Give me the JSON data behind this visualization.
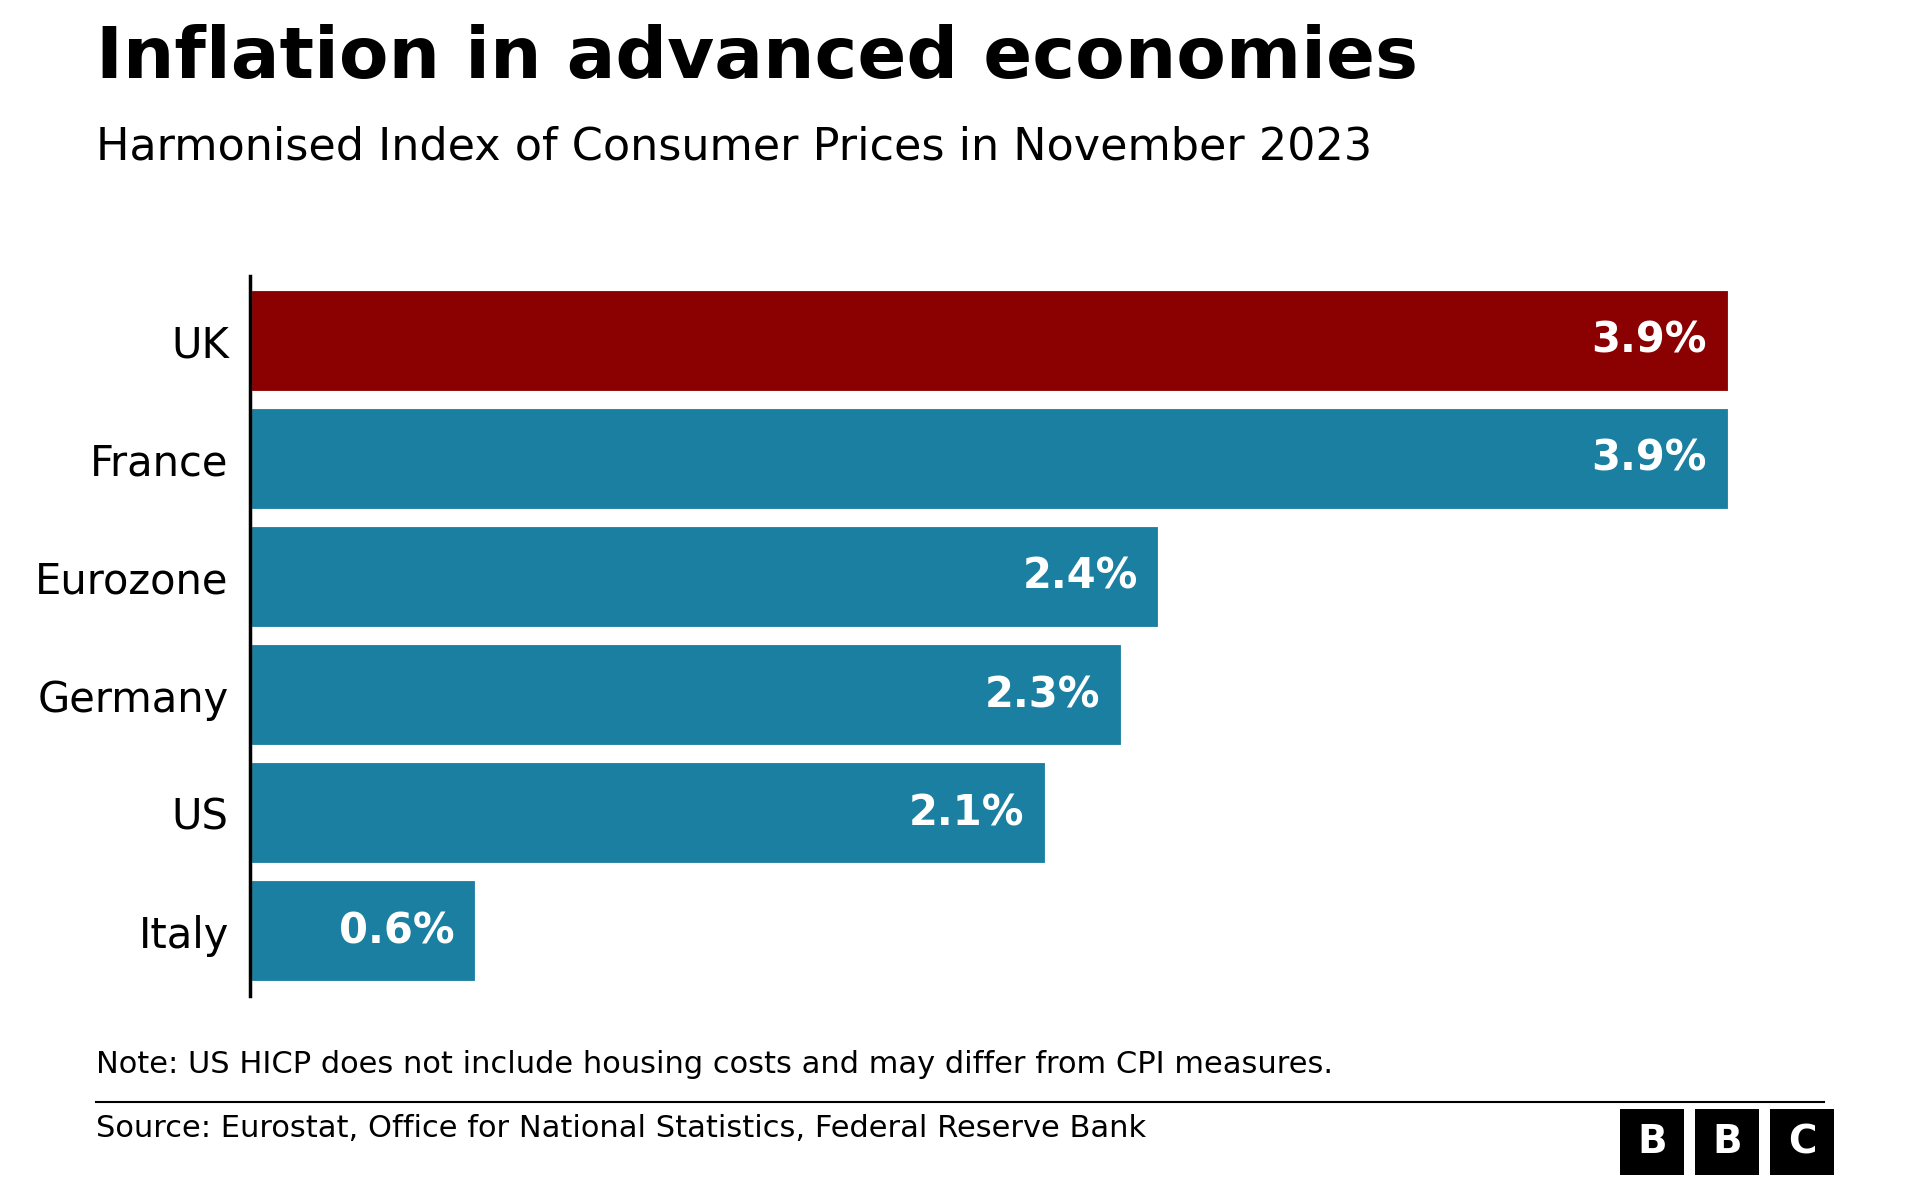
{
  "title": "Inflation in advanced economies",
  "subtitle": "Harmonised Index of Consumer Prices in November 2023",
  "categories": [
    "UK",
    "France",
    "Eurozone",
    "Germany",
    "US",
    "Italy"
  ],
  "values": [
    3.9,
    3.9,
    2.4,
    2.3,
    2.1,
    0.6
  ],
  "labels": [
    "3.9%",
    "3.9%",
    "2.4%",
    "2.3%",
    "2.1%",
    "0.6%"
  ],
  "bar_colors": [
    "#8B0000",
    "#1A7FA0",
    "#1A7FA0",
    "#1A7FA0",
    "#1A7FA0",
    "#1A7FA0"
  ],
  "background_color": "#FFFFFF",
  "title_fontsize": 52,
  "subtitle_fontsize": 32,
  "label_fontsize": 30,
  "tick_fontsize": 30,
  "note_text": "Note: US HICP does not include housing costs and may differ from CPI measures.",
  "source_text": "Source: Eurostat, Office for National Statistics, Federal Reserve Bank",
  "note_fontsize": 22,
  "xlim": [
    0,
    4.3
  ],
  "bar_height": 0.88
}
